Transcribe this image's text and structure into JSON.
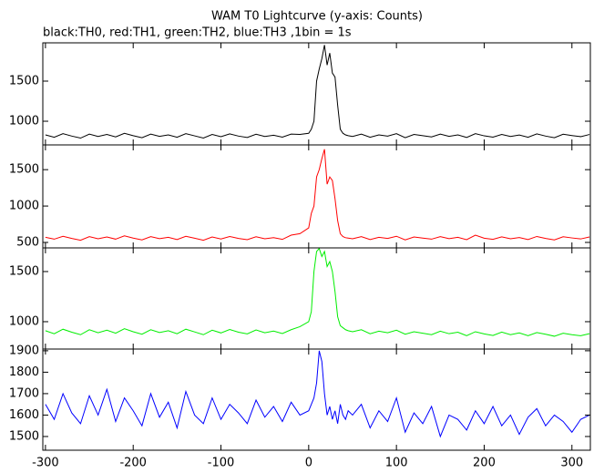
{
  "chart_data": [
    {
      "type": "line",
      "title": "WAM T0 Lightcurve (y-axis: Counts)",
      "subtitle": "black:TH0, red:TH1, green:TH2, blue:TH3 ,1bin = 1s",
      "color": "#000000",
      "x": [
        -300,
        -290,
        -280,
        -270,
        -260,
        -250,
        -240,
        -230,
        -220,
        -210,
        -200,
        -190,
        -180,
        -170,
        -160,
        -150,
        -140,
        -130,
        -120,
        -110,
        -100,
        -90,
        -80,
        -70,
        -60,
        -50,
        -40,
        -30,
        -20,
        -10,
        0,
        3,
        6,
        9,
        12,
        15,
        18,
        21,
        24,
        27,
        30,
        33,
        36,
        39,
        42,
        45,
        50,
        60,
        70,
        80,
        90,
        100,
        110,
        120,
        130,
        140,
        150,
        160,
        170,
        180,
        190,
        200,
        210,
        220,
        230,
        240,
        250,
        260,
        270,
        280,
        290,
        300,
        310,
        320
      ],
      "values": [
        830,
        800,
        845,
        815,
        790,
        840,
        810,
        835,
        805,
        850,
        820,
        795,
        840,
        812,
        830,
        800,
        845,
        818,
        790,
        835,
        808,
        842,
        815,
        798,
        838,
        810,
        826,
        802,
        840,
        835,
        850,
        900,
        1000,
        1500,
        1650,
        1780,
        1950,
        1700,
        1850,
        1600,
        1550,
        1200,
        900,
        850,
        830,
        820,
        810,
        840,
        800,
        830,
        815,
        845,
        795,
        835,
        820,
        805,
        840,
        812,
        830,
        798,
        845,
        818,
        802,
        836,
        810,
        828,
        800,
        842,
        815,
        795,
        838,
        822,
        808,
        835
      ],
      "xlim": [
        -303,
        321
      ],
      "ylim": [
        705,
        1977
      ],
      "yticks": [
        1000,
        1500
      ]
    },
    {
      "type": "line",
      "color": "#ff0000",
      "x": [
        -300,
        -290,
        -280,
        -270,
        -260,
        -250,
        -240,
        -230,
        -220,
        -210,
        -200,
        -190,
        -180,
        -170,
        -160,
        -150,
        -140,
        -130,
        -120,
        -110,
        -100,
        -90,
        -80,
        -70,
        -60,
        -50,
        -40,
        -30,
        -20,
        -10,
        0,
        3,
        6,
        9,
        12,
        15,
        18,
        21,
        24,
        27,
        30,
        33,
        36,
        39,
        42,
        45,
        50,
        60,
        70,
        80,
        90,
        100,
        110,
        120,
        130,
        140,
        150,
        160,
        170,
        180,
        190,
        200,
        210,
        220,
        230,
        240,
        250,
        260,
        270,
        280,
        290,
        300,
        310,
        320
      ],
      "values": [
        570,
        545,
        585,
        555,
        530,
        580,
        550,
        575,
        545,
        590,
        560,
        535,
        580,
        552,
        570,
        540,
        585,
        558,
        530,
        575,
        548,
        582,
        555,
        538,
        578,
        550,
        566,
        542,
        600,
        620,
        700,
        900,
        1000,
        1400,
        1500,
        1650,
        1780,
        1300,
        1400,
        1350,
        1100,
        800,
        620,
        580,
        565,
        560,
        550,
        580,
        540,
        570,
        555,
        585,
        535,
        575,
        560,
        545,
        580,
        552,
        570,
        538,
        600,
        558,
        542,
        576,
        550,
        568,
        540,
        582,
        555,
        535,
        578,
        562,
        548,
        575
      ],
      "xlim": [
        -303,
        321
      ],
      "ylim": [
        425,
        1840
      ],
      "yticks": [
        500,
        1000,
        1500
      ]
    },
    {
      "type": "line",
      "color": "#00ee00",
      "x": [
        -300,
        -290,
        -280,
        -270,
        -260,
        -250,
        -240,
        -230,
        -220,
        -210,
        -200,
        -190,
        -180,
        -170,
        -160,
        -150,
        -140,
        -130,
        -120,
        -110,
        -100,
        -90,
        -80,
        -70,
        -60,
        -50,
        -40,
        -30,
        -20,
        -10,
        0,
        3,
        6,
        9,
        12,
        15,
        18,
        21,
        24,
        27,
        30,
        33,
        36,
        39,
        42,
        45,
        50,
        60,
        70,
        80,
        90,
        100,
        110,
        120,
        130,
        140,
        150,
        160,
        170,
        180,
        190,
        200,
        210,
        220,
        230,
        240,
        250,
        260,
        270,
        280,
        290,
        300,
        310,
        320
      ],
      "values": [
        910,
        880,
        925,
        895,
        870,
        920,
        890,
        915,
        885,
        930,
        900,
        875,
        920,
        892,
        910,
        880,
        925,
        898,
        870,
        915,
        888,
        922,
        895,
        878,
        918,
        890,
        906,
        882,
        920,
        950,
        1000,
        1100,
        1500,
        1700,
        1730,
        1650,
        1700,
        1550,
        1600,
        1500,
        1300,
        1050,
        960,
        940,
        920,
        910,
        900,
        920,
        880,
        905,
        890,
        915,
        875,
        900,
        885,
        870,
        905,
        880,
        895,
        860,
        900,
        878,
        862,
        896,
        870,
        888,
        860,
        892,
        875,
        855,
        885,
        870,
        860,
        880
      ],
      "xlim": [
        -303,
        321
      ],
      "ylim": [
        727,
        1736
      ],
      "yticks": [
        1000,
        1500
      ]
    },
    {
      "type": "line",
      "color": "#0000ff",
      "x": [
        -300,
        -290,
        -280,
        -270,
        -260,
        -250,
        -240,
        -230,
        -220,
        -210,
        -200,
        -190,
        -180,
        -170,
        -160,
        -150,
        -140,
        -130,
        -120,
        -110,
        -100,
        -90,
        -80,
        -70,
        -60,
        -50,
        -40,
        -30,
        -20,
        -10,
        0,
        3,
        6,
        9,
        12,
        15,
        18,
        21,
        24,
        27,
        30,
        33,
        36,
        39,
        42,
        45,
        50,
        60,
        70,
        80,
        90,
        100,
        110,
        120,
        130,
        140,
        150,
        160,
        170,
        180,
        190,
        200,
        210,
        220,
        230,
        240,
        250,
        260,
        270,
        280,
        290,
        300,
        310,
        320
      ],
      "values": [
        1650,
        1580,
        1700,
        1610,
        1560,
        1690,
        1600,
        1720,
        1570,
        1680,
        1620,
        1550,
        1700,
        1590,
        1660,
        1540,
        1710,
        1600,
        1560,
        1680,
        1580,
        1650,
        1610,
        1560,
        1670,
        1590,
        1640,
        1570,
        1660,
        1600,
        1620,
        1650,
        1680,
        1750,
        1900,
        1850,
        1700,
        1600,
        1640,
        1580,
        1620,
        1560,
        1650,
        1600,
        1580,
        1620,
        1600,
        1650,
        1540,
        1620,
        1570,
        1680,
        1520,
        1610,
        1560,
        1640,
        1500,
        1600,
        1580,
        1530,
        1620,
        1560,
        1640,
        1550,
        1600,
        1510,
        1590,
        1630,
        1550,
        1600,
        1570,
        1520,
        1580,
        1600
      ],
      "xlim": [
        -303,
        321
      ],
      "ylim": [
        1436,
        1908
      ],
      "yticks": [
        1500,
        1600,
        1700,
        1800,
        1900
      ],
      "xticks": [
        -300,
        -200,
        -100,
        0,
        100,
        200,
        300
      ]
    }
  ]
}
